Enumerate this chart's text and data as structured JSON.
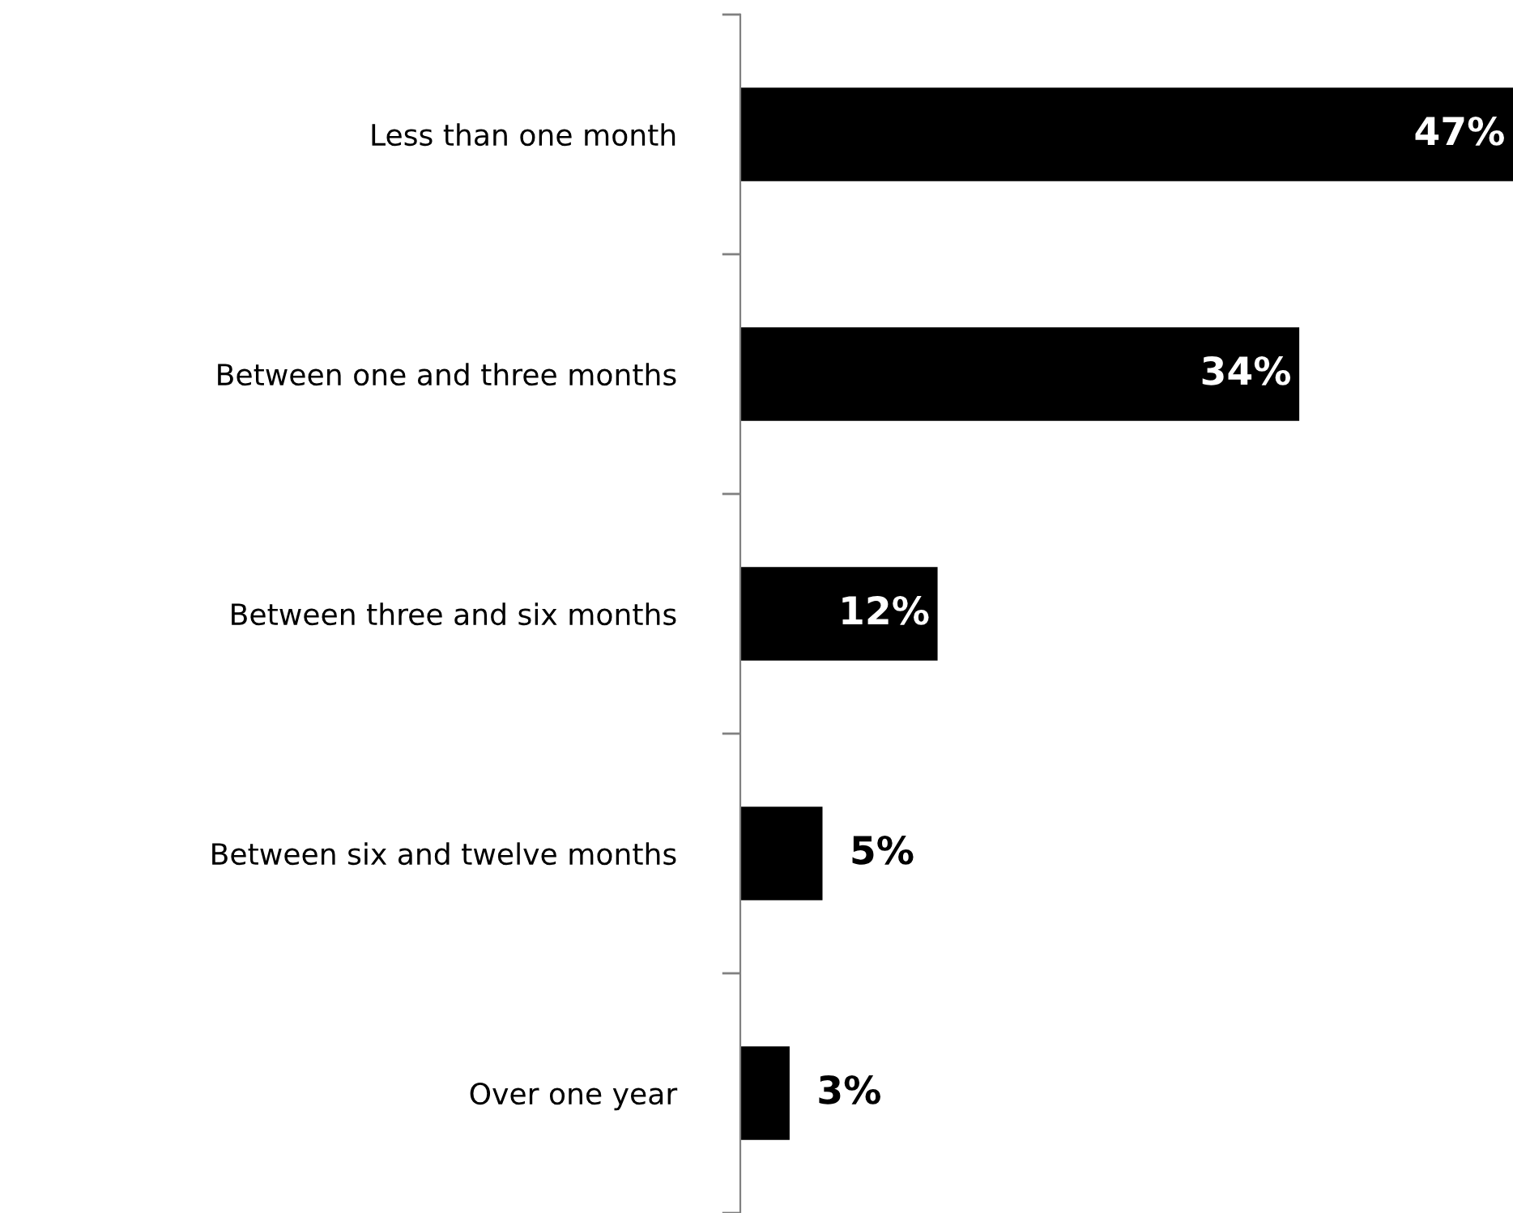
{
  "chart_data": {
    "type": "bar",
    "orientation": "horizontal",
    "categories": [
      "Less than one month",
      "Between one and three months",
      "Between three and six months",
      "Between six and twelve months",
      "Over one year"
    ],
    "values": [
      47,
      34,
      12,
      5,
      3
    ],
    "color": "#000000",
    "value_labels": [
      "47%",
      "34%",
      "12%",
      "5%",
      "3%"
    ],
    "tick_labels": "y",
    "grid": false,
    "legend": false
  }
}
